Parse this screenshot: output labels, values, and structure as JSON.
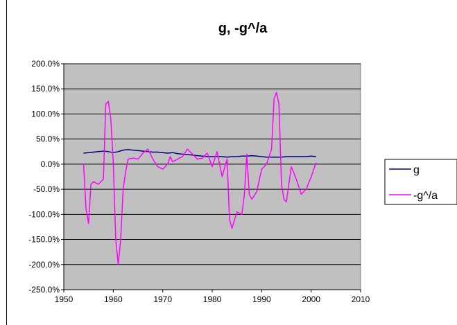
{
  "chart_data": {
    "type": "line",
    "title": "g, -g^/a",
    "xlabel": "",
    "ylabel": "",
    "xlim": [
      1950,
      2010
    ],
    "ylim": [
      -250,
      200
    ],
    "x_ticks": [
      "1950",
      "1960",
      "1970",
      "1980",
      "1990",
      "2000",
      "2010"
    ],
    "y_ticks": [
      "200.0%",
      "150.0%",
      "100.0%",
      "50.0%",
      "0.0%",
      "-50.0%",
      "-100.0%",
      "-150.0%",
      "-200.0%",
      "-250.0%"
    ],
    "grid": "horizontal",
    "legend_position": "right",
    "plot_background": "#c0c0c0",
    "series": [
      {
        "name": "g",
        "color": "#000080",
        "points": [
          [
            1954,
            22
          ],
          [
            1955,
            23
          ],
          [
            1956,
            24
          ],
          [
            1957,
            25
          ],
          [
            1958,
            26
          ],
          [
            1959,
            25
          ],
          [
            1960,
            23
          ],
          [
            1961,
            25
          ],
          [
            1962,
            28
          ],
          [
            1963,
            29
          ],
          [
            1964,
            28
          ],
          [
            1965,
            27
          ],
          [
            1966,
            26
          ],
          [
            1967,
            25
          ],
          [
            1968,
            24
          ],
          [
            1969,
            24
          ],
          [
            1970,
            23
          ],
          [
            1971,
            22
          ],
          [
            1972,
            23
          ],
          [
            1973,
            21
          ],
          [
            1974,
            20
          ],
          [
            1975,
            19
          ],
          [
            1976,
            18
          ],
          [
            1977,
            17
          ],
          [
            1978,
            16
          ],
          [
            1979,
            15
          ],
          [
            1980,
            15
          ],
          [
            1981,
            15
          ],
          [
            1982,
            15
          ],
          [
            1983,
            14
          ],
          [
            1984,
            15
          ],
          [
            1985,
            15
          ],
          [
            1986,
            16
          ],
          [
            1987,
            16
          ],
          [
            1988,
            17
          ],
          [
            1989,
            16
          ],
          [
            1990,
            15
          ],
          [
            1991,
            14
          ],
          [
            1992,
            14
          ],
          [
            1993,
            14
          ],
          [
            1994,
            14
          ],
          [
            1995,
            15
          ],
          [
            1996,
            15
          ],
          [
            1997,
            15
          ],
          [
            1998,
            15
          ],
          [
            1999,
            15
          ],
          [
            2000,
            16
          ],
          [
            2001,
            15
          ]
        ]
      },
      {
        "name": "-g^/a",
        "color": "#ff00ff",
        "points": [
          [
            1954,
            0
          ],
          [
            1954.5,
            -90
          ],
          [
            1955,
            -118
          ],
          [
            1955.5,
            -40
          ],
          [
            1956,
            -35
          ],
          [
            1957,
            -40
          ],
          [
            1958,
            -30
          ],
          [
            1958.5,
            120
          ],
          [
            1959,
            125
          ],
          [
            1959.5,
            90
          ],
          [
            1960,
            5
          ],
          [
            1960.5,
            -150
          ],
          [
            1961,
            -200
          ],
          [
            1961.5,
            -150
          ],
          [
            1962,
            -50
          ],
          [
            1962.5,
            -15
          ],
          [
            1963,
            10
          ],
          [
            1964,
            12
          ],
          [
            1965,
            10
          ],
          [
            1966,
            22
          ],
          [
            1967,
            30
          ],
          [
            1968,
            10
          ],
          [
            1969,
            -5
          ],
          [
            1970,
            -10
          ],
          [
            1971,
            0
          ],
          [
            1971.5,
            15
          ],
          [
            1972,
            5
          ],
          [
            1973,
            10
          ],
          [
            1974,
            15
          ],
          [
            1975,
            30
          ],
          [
            1976,
            20
          ],
          [
            1977,
            10
          ],
          [
            1978,
            12
          ],
          [
            1979,
            22
          ],
          [
            1980,
            -5
          ],
          [
            1981,
            25
          ],
          [
            1982,
            -25
          ],
          [
            1983,
            10
          ],
          [
            1983.5,
            -110
          ],
          [
            1984,
            -128
          ],
          [
            1985,
            -95
          ],
          [
            1986,
            -100
          ],
          [
            1986.5,
            -60
          ],
          [
            1987,
            20
          ],
          [
            1987.5,
            -60
          ],
          [
            1988,
            -70
          ],
          [
            1989,
            -55
          ],
          [
            1990,
            -10
          ],
          [
            1991,
            0
          ],
          [
            1992,
            30
          ],
          [
            1992.5,
            130
          ],
          [
            1993,
            143
          ],
          [
            1993.5,
            120
          ],
          [
            1994,
            -40
          ],
          [
            1994.5,
            -70
          ],
          [
            1995,
            -75
          ],
          [
            1996,
            -5
          ],
          [
            1997,
            -30
          ],
          [
            1998,
            -60
          ],
          [
            1999,
            -50
          ],
          [
            2000,
            -25
          ],
          [
            2001,
            3
          ]
        ]
      }
    ]
  }
}
